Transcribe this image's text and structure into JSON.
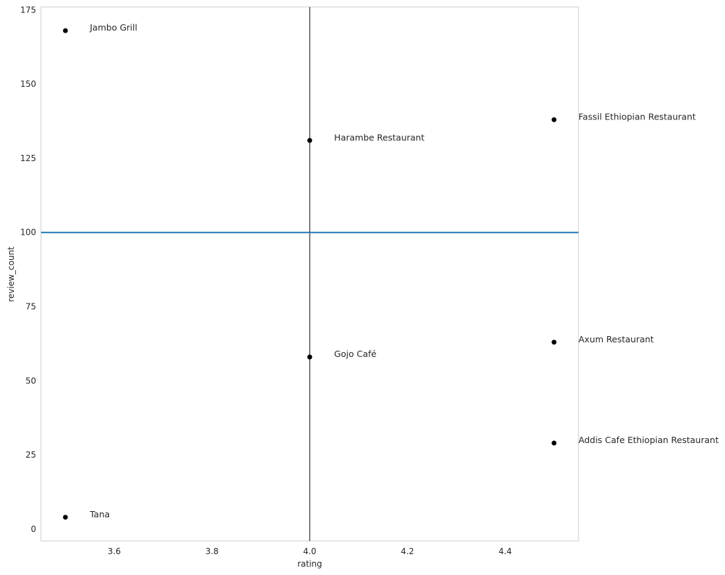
{
  "chart_data": {
    "type": "scatter",
    "xlabel": "rating",
    "ylabel": "review_count",
    "xlim": [
      3.45,
      4.55
    ],
    "ylim": [
      -4,
      176
    ],
    "xticks": [
      3.6,
      3.8,
      4.0,
      4.2,
      4.4
    ],
    "xtick_labels": [
      "3.6",
      "3.8",
      "4.0",
      "4.2",
      "4.4"
    ],
    "yticks": [
      0,
      25,
      50,
      75,
      100,
      125,
      150,
      175
    ],
    "ytick_labels": [
      "0",
      "25",
      "50",
      "75",
      "100",
      "125",
      "150",
      "175"
    ],
    "grid": false,
    "points": [
      {
        "label": "Jambo Grill",
        "x": 3.5,
        "y": 168
      },
      {
        "label": "Fassil Ethiopian Restaurant",
        "x": 4.5,
        "y": 138
      },
      {
        "label": "Harambe Restaurant",
        "x": 4.0,
        "y": 131
      },
      {
        "label": "Axum Restaurant",
        "x": 4.5,
        "y": 63
      },
      {
        "label": "Gojo Café",
        "x": 4.0,
        "y": 58
      },
      {
        "label": "Addis Cafe Ethiopian Restaurant",
        "x": 4.5,
        "y": 29
      },
      {
        "label": "Tana",
        "x": 3.5,
        "y": 4
      }
    ],
    "reference_lines": [
      {
        "orientation": "vertical",
        "x": 4.0,
        "color": "#7f7f7f"
      },
      {
        "orientation": "horizontal",
        "y": 100,
        "color": "#1f77b4"
      }
    ],
    "point_color": "#000000"
  }
}
